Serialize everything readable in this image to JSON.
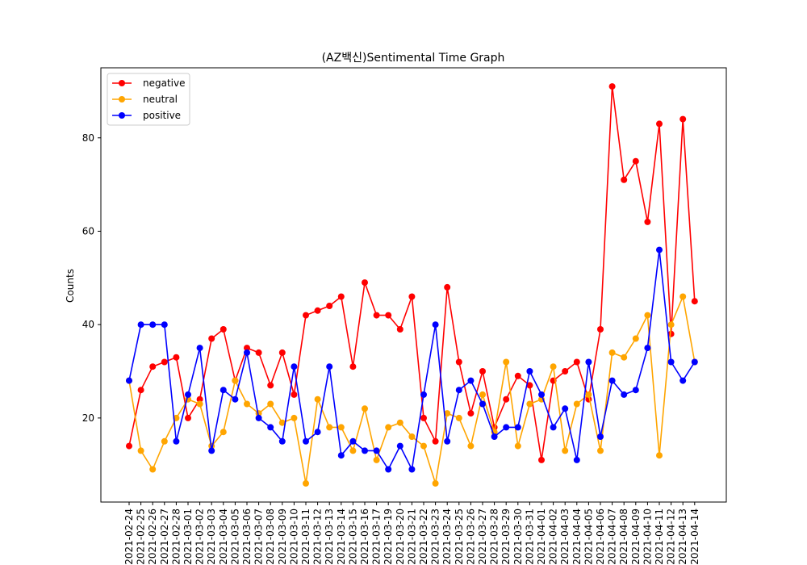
{
  "chart_data": {
    "type": "line",
    "title": "(AZ백신)Sentimental Time Graph",
    "xlabel": "",
    "ylabel": "Counts",
    "ylim": [
      2,
      95
    ],
    "yticks": [
      20,
      40,
      60,
      80
    ],
    "grid": false,
    "legend_position": "top-left",
    "x": [
      "2021-02-24",
      "2021-02-25",
      "2021-02-26",
      "2021-02-27",
      "2021-02-28",
      "2021-03-01",
      "2021-03-02",
      "2021-03-03",
      "2021-03-04",
      "2021-03-05",
      "2021-03-06",
      "2021-03-07",
      "2021-03-08",
      "2021-03-09",
      "2021-03-10",
      "2021-03-11",
      "2021-03-12",
      "2021-03-13",
      "2021-03-14",
      "2021-03-15",
      "2021-03-16",
      "2021-03-17",
      "2021-03-19",
      "2021-03-20",
      "2021-03-21",
      "2021-03-22",
      "2021-03-23",
      "2021-03-24",
      "2021-03-25",
      "2021-03-26",
      "2021-03-27",
      "2021-03-28",
      "2021-03-29",
      "2021-03-30",
      "2021-03-31",
      "2021-04-01",
      "2021-04-02",
      "2021-04-03",
      "2021-04-04",
      "2021-04-05",
      "2021-04-06",
      "2021-04-07",
      "2021-04-08",
      "2021-04-09",
      "2021-04-10",
      "2021-04-11",
      "2021-04-12",
      "2021-04-13",
      "2021-04-14"
    ],
    "series": [
      {
        "name": "negative",
        "color": "#ff0000",
        "values": [
          14,
          26,
          31,
          32,
          33,
          20,
          24,
          37,
          39,
          28,
          35,
          34,
          27,
          34,
          25,
          42,
          43,
          44,
          46,
          31,
          49,
          42,
          42,
          39,
          46,
          20,
          15,
          48,
          32,
          21,
          30,
          18,
          24,
          29,
          27,
          11,
          28,
          30,
          32,
          24,
          39,
          91,
          71,
          75,
          62,
          83,
          38,
          84,
          45
        ]
      },
      {
        "name": "neutral",
        "color": "#ffa500",
        "values": [
          28,
          13,
          9,
          15,
          20,
          24,
          23,
          14,
          17,
          28,
          23,
          21,
          23,
          19,
          20,
          6,
          24,
          18,
          18,
          13,
          22,
          11,
          18,
          19,
          16,
          14,
          6,
          21,
          20,
          14,
          25,
          17,
          32,
          14,
          23,
          24,
          31,
          13,
          23,
          25,
          13,
          34,
          33,
          37,
          42,
          12,
          40,
          46,
          32
        ]
      },
      {
        "name": "positive",
        "color": "#0000ff",
        "values": [
          28,
          40,
          40,
          40,
          15,
          25,
          35,
          13,
          26,
          24,
          34,
          20,
          18,
          15,
          31,
          15,
          17,
          31,
          12,
          15,
          13,
          13,
          9,
          14,
          9,
          25,
          40,
          15,
          26,
          28,
          23,
          16,
          18,
          18,
          30,
          25,
          18,
          22,
          11,
          32,
          16,
          28,
          25,
          26,
          35,
          56,
          32,
          28,
          32
        ]
      }
    ]
  }
}
